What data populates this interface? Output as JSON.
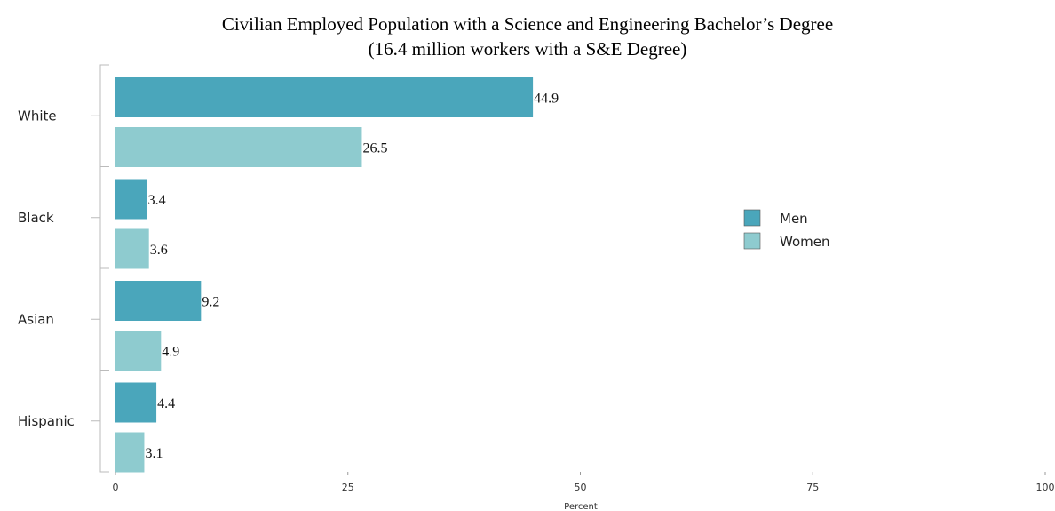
{
  "chart_data": {
    "type": "bar",
    "orientation": "horizontal",
    "title": "Civilian Employed Population with a Science and Engineering Bachelor’s Degree",
    "subtitle": "(16.4 million workers with a S&E Degree)",
    "xlabel": "Percent",
    "ylabel": "",
    "xlim": [
      0,
      100
    ],
    "xticks": [
      "0",
      "25",
      "50",
      "75",
      "100"
    ],
    "categories": [
      "White",
      "Black",
      "Asian",
      "Hispanic"
    ],
    "series": [
      {
        "name": "Men",
        "color": "#4aa6bb",
        "values": [
          44.9,
          3.4,
          9.2,
          4.4
        ]
      },
      {
        "name": "Women",
        "color": "#8ecbcf",
        "values": [
          26.5,
          3.6,
          4.9,
          3.1
        ]
      }
    ],
    "legend_position": "right",
    "grid": false
  }
}
